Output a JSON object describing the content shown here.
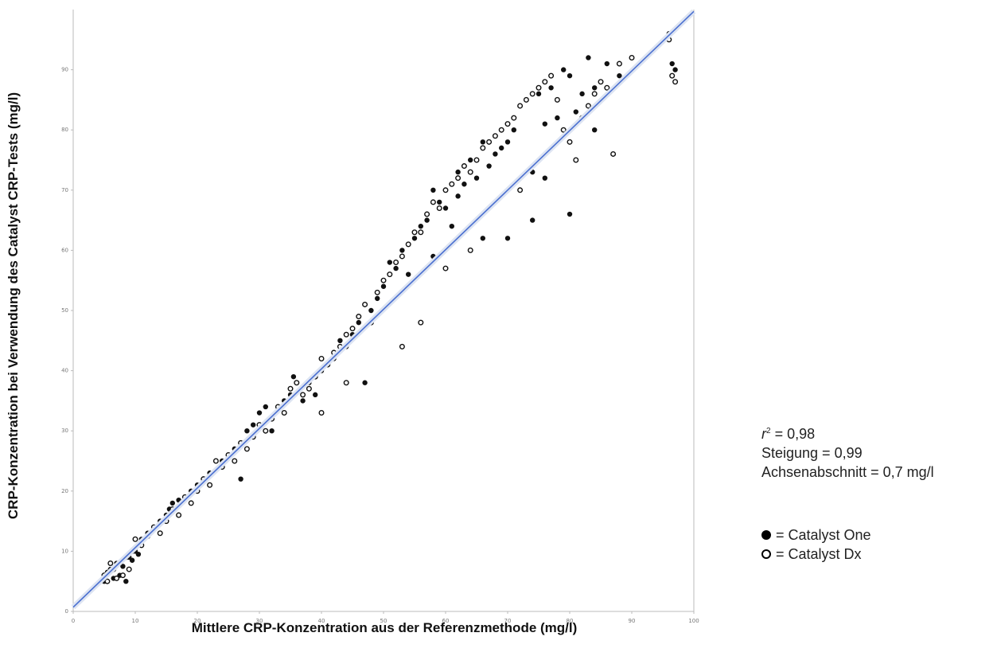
{
  "chart_data": {
    "type": "scatter",
    "title": "",
    "xlabel": "Mittlere CRP-Konzentration aus der Referenzmethode (mg/l)",
    "ylabel": "CRP-Konzentration bei Verwendung des Catalyst CRP-Tests (mg/l)",
    "xlim": [
      0,
      100
    ],
    "ylim": [
      0,
      100
    ],
    "xticks": [
      0,
      10,
      20,
      30,
      40,
      50,
      60,
      70,
      80,
      90,
      100
    ],
    "yticks": [
      0,
      10,
      20,
      30,
      40,
      50,
      60,
      70,
      80,
      90
    ],
    "grid": false,
    "regression": {
      "slope": 0.99,
      "intercept": 0.7,
      "color": "#4a6fd0"
    },
    "series": [
      {
        "name": "Catalyst One",
        "marker": "filled",
        "points": [
          [
            5,
            5
          ],
          [
            5.5,
            6.5
          ],
          [
            6,
            7
          ],
          [
            6.5,
            5.5
          ],
          [
            7,
            8
          ],
          [
            7.5,
            6
          ],
          [
            8,
            7.5
          ],
          [
            8.5,
            5
          ],
          [
            9,
            9
          ],
          [
            9.5,
            8.5
          ],
          [
            10,
            10
          ],
          [
            10.5,
            9.5
          ],
          [
            11,
            12
          ],
          [
            12,
            13
          ],
          [
            13,
            14
          ],
          [
            14,
            15
          ],
          [
            15,
            16
          ],
          [
            15.5,
            17
          ],
          [
            16,
            18
          ],
          [
            17,
            18.5
          ],
          [
            18,
            19
          ],
          [
            19,
            20
          ],
          [
            20,
            21
          ],
          [
            21,
            22
          ],
          [
            22,
            23
          ],
          [
            23,
            23.5
          ],
          [
            24,
            25
          ],
          [
            25,
            26
          ],
          [
            26,
            27
          ],
          [
            27,
            22
          ],
          [
            28,
            30
          ],
          [
            29,
            31
          ],
          [
            30,
            33
          ],
          [
            31,
            34
          ],
          [
            32,
            30
          ],
          [
            34,
            35
          ],
          [
            35,
            36
          ],
          [
            35.5,
            39
          ],
          [
            37,
            35
          ],
          [
            38,
            38
          ],
          [
            39,
            36
          ],
          [
            40,
            40
          ],
          [
            41,
            41
          ],
          [
            42,
            42
          ],
          [
            43,
            45
          ],
          [
            44,
            44
          ],
          [
            45,
            46
          ],
          [
            46,
            48
          ],
          [
            47,
            38
          ],
          [
            48,
            50
          ],
          [
            49,
            52
          ],
          [
            50,
            54
          ],
          [
            51,
            58
          ],
          [
            52,
            57
          ],
          [
            53,
            60
          ],
          [
            54,
            56
          ],
          [
            55,
            62
          ],
          [
            56,
            64
          ],
          [
            57,
            65
          ],
          [
            58,
            70
          ],
          [
            59,
            68
          ],
          [
            60,
            67
          ],
          [
            61,
            64
          ],
          [
            62,
            73
          ],
          [
            63,
            71
          ],
          [
            64,
            75
          ],
          [
            65,
            72
          ],
          [
            66,
            62
          ],
          [
            67,
            74
          ],
          [
            68,
            76
          ],
          [
            69,
            77
          ],
          [
            70,
            78
          ],
          [
            71,
            80
          ],
          [
            72,
            84
          ],
          [
            73,
            85
          ],
          [
            74,
            73
          ],
          [
            75,
            86
          ],
          [
            76,
            81
          ],
          [
            77,
            87
          ],
          [
            78,
            82
          ],
          [
            79,
            90
          ],
          [
            80,
            89
          ],
          [
            81,
            83
          ],
          [
            82,
            86
          ],
          [
            83,
            92
          ],
          [
            84,
            87
          ],
          [
            85,
            88
          ],
          [
            86,
            91
          ],
          [
            88,
            89
          ],
          [
            96,
            96
          ],
          [
            96.5,
            91
          ],
          [
            97,
            90
          ],
          [
            58,
            59
          ],
          [
            62,
            69
          ],
          [
            66,
            78
          ],
          [
            70,
            62
          ],
          [
            74,
            65
          ],
          [
            76,
            72
          ],
          [
            80,
            66
          ],
          [
            84,
            80
          ]
        ]
      },
      {
        "name": "Catalyst Dx",
        "marker": "open",
        "points": [
          [
            5,
            6
          ],
          [
            5.5,
            5
          ],
          [
            6,
            8
          ],
          [
            6.5,
            7
          ],
          [
            7,
            5.5
          ],
          [
            7.5,
            8
          ],
          [
            8,
            6
          ],
          [
            8.5,
            9
          ],
          [
            9,
            7
          ],
          [
            9.5,
            10
          ],
          [
            10,
            12
          ],
          [
            11,
            11
          ],
          [
            12,
            12.5
          ],
          [
            13,
            14
          ],
          [
            14,
            13
          ],
          [
            15,
            15
          ],
          [
            16,
            17
          ],
          [
            17,
            16
          ],
          [
            18,
            19
          ],
          [
            19,
            18
          ],
          [
            20,
            20
          ],
          [
            21,
            22
          ],
          [
            22,
            21
          ],
          [
            23,
            25
          ],
          [
            24,
            24
          ],
          [
            25,
            26
          ],
          [
            26,
            25
          ],
          [
            27,
            28
          ],
          [
            28,
            27
          ],
          [
            29,
            29
          ],
          [
            30,
            31
          ],
          [
            31,
            30
          ],
          [
            32,
            32
          ],
          [
            33,
            34
          ],
          [
            34,
            33
          ],
          [
            35,
            37
          ],
          [
            36,
            38
          ],
          [
            37,
            36
          ],
          [
            38,
            37
          ],
          [
            39,
            39
          ],
          [
            40,
            42
          ],
          [
            41,
            41
          ],
          [
            42,
            43
          ],
          [
            43,
            44
          ],
          [
            44,
            46
          ],
          [
            45,
            47
          ],
          [
            46,
            49
          ],
          [
            47,
            51
          ],
          [
            48,
            48
          ],
          [
            49,
            53
          ],
          [
            50,
            55
          ],
          [
            51,
            56
          ],
          [
            52,
            58
          ],
          [
            53,
            59
          ],
          [
            54,
            61
          ],
          [
            55,
            63
          ],
          [
            56,
            63
          ],
          [
            57,
            66
          ],
          [
            58,
            68
          ],
          [
            59,
            67
          ],
          [
            60,
            70
          ],
          [
            61,
            71
          ],
          [
            62,
            72
          ],
          [
            63,
            74
          ],
          [
            64,
            73
          ],
          [
            65,
            75
          ],
          [
            66,
            77
          ],
          [
            67,
            78
          ],
          [
            68,
            79
          ],
          [
            69,
            80
          ],
          [
            70,
            81
          ],
          [
            71,
            82
          ],
          [
            72,
            84
          ],
          [
            73,
            85
          ],
          [
            74,
            86
          ],
          [
            75,
            87
          ],
          [
            76,
            88
          ],
          [
            77,
            89
          ],
          [
            78,
            85
          ],
          [
            79,
            80
          ],
          [
            80,
            78
          ],
          [
            81,
            75
          ],
          [
            82,
            82
          ],
          [
            83,
            84
          ],
          [
            84,
            86
          ],
          [
            85,
            88
          ],
          [
            86,
            87
          ],
          [
            87,
            76
          ],
          [
            88,
            91
          ],
          [
            90,
            92
          ],
          [
            96,
            95
          ],
          [
            96.5,
            89
          ],
          [
            97,
            88
          ],
          [
            40,
            33
          ],
          [
            44,
            38
          ],
          [
            53,
            44
          ],
          [
            56,
            48
          ],
          [
            60,
            57
          ],
          [
            64,
            60
          ],
          [
            72,
            70
          ]
        ]
      }
    ]
  },
  "stats": {
    "r2_symbol": "r",
    "r2_sup": "2",
    "r2_value": " = 0,98",
    "slope": "Steigung = 0,99",
    "intercept": "Achsenabschnitt = 0,7 mg/l"
  },
  "legend": {
    "one": "= Catalyst One",
    "dx": "= Catalyst Dx"
  }
}
